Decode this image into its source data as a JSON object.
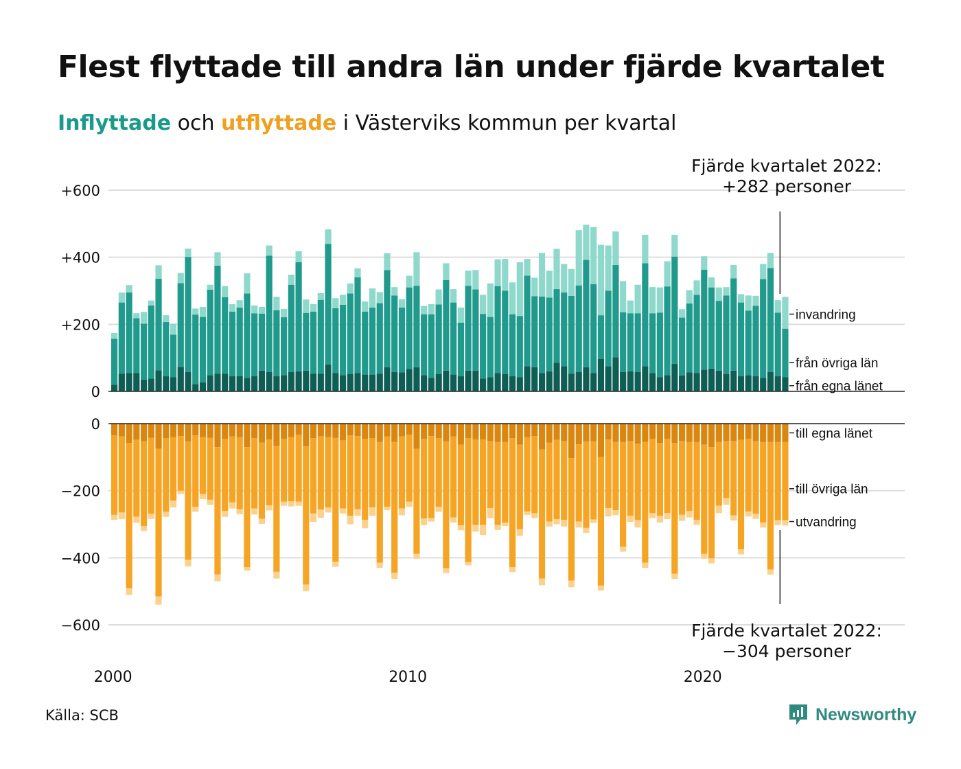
{
  "title": "Flest flyttade till andra län under fjärde kvartalet",
  "subtitle": {
    "in_word": "Inflyttade",
    "middle": " och ",
    "out_word": "utflyttade",
    "rest": " i Västerviks kommun per kvartal"
  },
  "source": "Källa: SCB",
  "brand": "Newsworthy",
  "colors": {
    "in_own": "#0f5e55",
    "in_other": "#1f9a8c",
    "in_immigration": "#8fd8cc",
    "out_own": "#d98710",
    "out_other": "#f6a423",
    "out_emigration": "#fad28e",
    "grid": "#dddddd",
    "axis_text": "#111111",
    "logo": "#2f8a80"
  },
  "chart_data": {
    "type": "bar",
    "stacked": true,
    "x_ticks": [
      "2000",
      "2010",
      "2020"
    ],
    "grid": true,
    "top_panel": {
      "ylim": [
        0,
        600
      ],
      "y_ticks": [
        "0",
        "+200",
        "+400",
        "+600"
      ],
      "series_labels": [
        "från egna länet",
        "från övriga län",
        "invandring"
      ],
      "annotation_line1": "Fjärde kvartalet 2022:",
      "annotation_line2": "+282 personer",
      "own_county": [
        20,
        53,
        55,
        55,
        35,
        38,
        63,
        45,
        42,
        73,
        58,
        22,
        27,
        48,
        53,
        53,
        45,
        45,
        40,
        45,
        62,
        58,
        45,
        48,
        58,
        60,
        62,
        53,
        53,
        80,
        55,
        48,
        52,
        55,
        50,
        50,
        53,
        72,
        58,
        57,
        67,
        72,
        48,
        40,
        52,
        62,
        50,
        45,
        62,
        62,
        38,
        42,
        55,
        52,
        45,
        42,
        75,
        72,
        55,
        60,
        85,
        75,
        53,
        58,
        72,
        55,
        97,
        75,
        102,
        58,
        60,
        58,
        75,
        55,
        42,
        48,
        82,
        47,
        57,
        55,
        65,
        68,
        62,
        52,
        62,
        45,
        48,
        45,
        40,
        58,
        45,
        42
      ],
      "other_counties": [
        137,
        212,
        240,
        163,
        167,
        218,
        273,
        162,
        127,
        250,
        343,
        207,
        195,
        255,
        322,
        228,
        193,
        205,
        252,
        188,
        170,
        347,
        197,
        173,
        260,
        325,
        172,
        185,
        220,
        360,
        193,
        210,
        240,
        285,
        188,
        200,
        210,
        290,
        228,
        193,
        243,
        243,
        182,
        190,
        207,
        270,
        215,
        160,
        253,
        242,
        193,
        180,
        259,
        248,
        185,
        183,
        270,
        212,
        228,
        220,
        220,
        220,
        232,
        258,
        320,
        265,
        130,
        225,
        275,
        178,
        173,
        175,
        307,
        178,
        193,
        265,
        320,
        173,
        205,
        233,
        298,
        242,
        208,
        234,
        275,
        220,
        193,
        210,
        295,
        310,
        190,
        145
      ],
      "immigration": [
        17,
        30,
        22,
        15,
        35,
        15,
        40,
        20,
        33,
        30,
        25,
        18,
        30,
        15,
        40,
        33,
        22,
        22,
        60,
        23,
        20,
        30,
        40,
        25,
        30,
        33,
        40,
        22,
        20,
        43,
        30,
        30,
        30,
        27,
        30,
        57,
        33,
        50,
        25,
        25,
        35,
        100,
        25,
        30,
        45,
        50,
        40,
        45,
        45,
        58,
        57,
        100,
        80,
        95,
        95,
        160,
        50,
        55,
        130,
        80,
        120,
        85,
        80,
        165,
        105,
        170,
        210,
        135,
        100,
        93,
        38,
        85,
        85,
        78,
        75,
        75,
        65,
        25,
        40,
        43,
        40,
        30,
        40,
        25,
        40,
        25,
        45,
        30,
        45,
        45,
        37,
        95
      ]
    },
    "bottom_panel": {
      "ylim": [
        -600,
        0
      ],
      "y_ticks": [
        "0",
        "−200",
        "−400",
        "−600"
      ],
      "series_labels": [
        "till egna länet",
        "till övriga län",
        "utvandring"
      ],
      "annotation_line1": "Fjärde kvartalet 2022:",
      "annotation_line2": "−304 personer",
      "own_county": [
        35,
        38,
        58,
        48,
        53,
        42,
        75,
        43,
        40,
        37,
        53,
        35,
        40,
        42,
        70,
        45,
        38,
        40,
        70,
        43,
        57,
        47,
        67,
        45,
        40,
        33,
        68,
        43,
        38,
        40,
        42,
        50,
        35,
        37,
        45,
        43,
        55,
        38,
        55,
        38,
        33,
        75,
        45,
        37,
        43,
        53,
        38,
        63,
        43,
        47,
        47,
        52,
        55,
        55,
        43,
        63,
        40,
        37,
        77,
        57,
        48,
        52,
        103,
        62,
        53,
        53,
        100,
        47,
        55,
        55,
        52,
        60,
        55,
        45,
        58,
        45,
        58,
        52,
        55,
        55,
        63,
        70,
        55,
        52,
        52,
        48,
        45,
        52,
        55,
        55,
        55,
        55
      ],
      "other_counties": [
        237,
        227,
        433,
        230,
        252,
        227,
        440,
        220,
        190,
        163,
        353,
        213,
        170,
        185,
        380,
        215,
        197,
        215,
        358,
        210,
        227,
        197,
        375,
        188,
        192,
        200,
        412,
        225,
        218,
        210,
        370,
        203,
        240,
        218,
        242,
        207,
        360,
        210,
        390,
        215,
        200,
        313,
        238,
        245,
        205,
        378,
        242,
        240,
        370,
        255,
        255,
        200,
        247,
        240,
        385,
        252,
        222,
        230,
        385,
        235,
        237,
        235,
        365,
        230,
        258,
        233,
        383,
        205,
        203,
        312,
        223,
        228,
        360,
        222,
        217,
        222,
        390,
        220,
        205,
        232,
        325,
        332,
        190,
        170,
        222,
        327,
        217,
        217,
        240,
        380,
        233,
        233
      ],
      "emigration": [
        15,
        20,
        20,
        18,
        15,
        15,
        25,
        15,
        20,
        10,
        20,
        15,
        15,
        15,
        20,
        18,
        18,
        15,
        10,
        18,
        15,
        15,
        20,
        12,
        15,
        12,
        20,
        25,
        25,
        15,
        15,
        15,
        25,
        20,
        25,
        25,
        15,
        10,
        18,
        20,
        15,
        15,
        20,
        10,
        15,
        15,
        15,
        15,
        10,
        20,
        30,
        30,
        15,
        10,
        15,
        20,
        10,
        15,
        20,
        15,
        15,
        20,
        20,
        18,
        15,
        10,
        15,
        25,
        15,
        15,
        18,
        22,
        15,
        15,
        20,
        18,
        15,
        18,
        20,
        15,
        15,
        15,
        22,
        20,
        15,
        15,
        15,
        15,
        15,
        15,
        15,
        16
      ]
    }
  }
}
